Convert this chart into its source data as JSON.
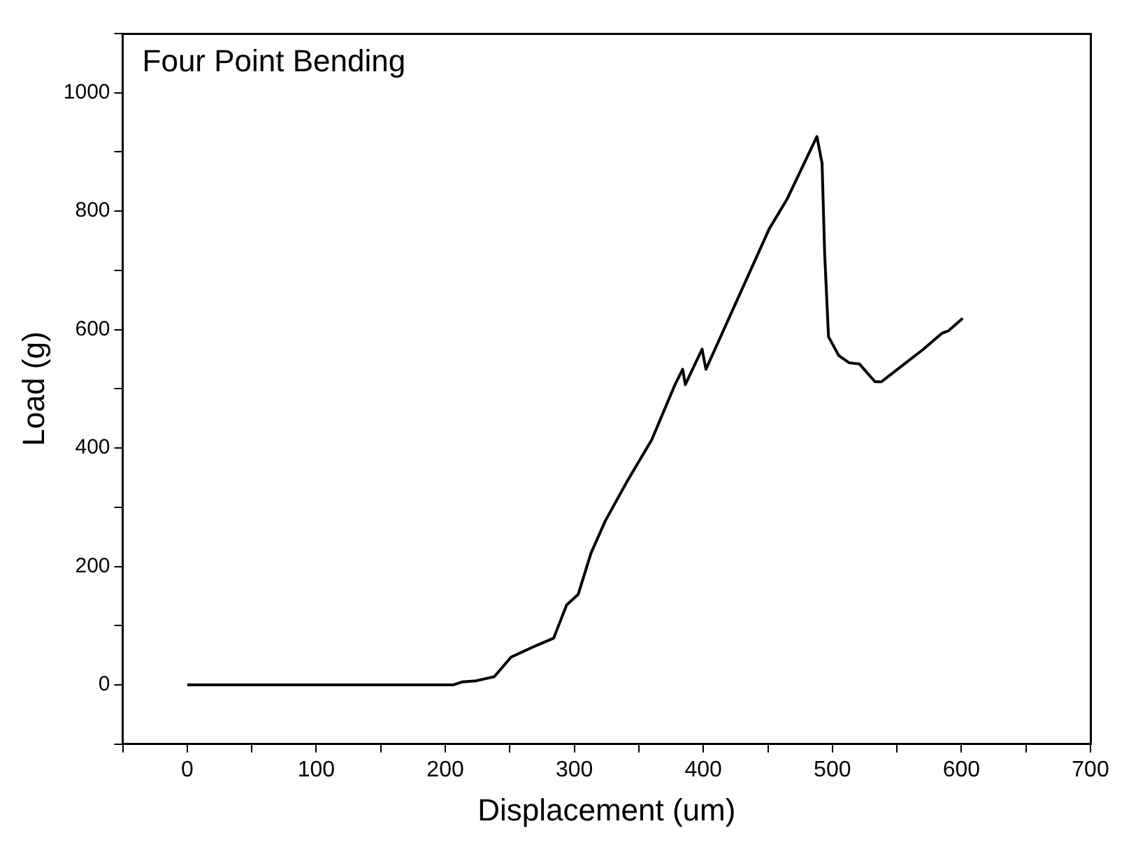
{
  "chart_data": {
    "type": "line",
    "annotations": [
      "Four Point Bending"
    ],
    "xlabel": "Displacement (um)",
    "ylabel": "Load (g)",
    "x": [
      0,
      100,
      206,
      213,
      224,
      238,
      251,
      260,
      271,
      284,
      294,
      303,
      313,
      324,
      341,
      360,
      378,
      384,
      386,
      399,
      402,
      451,
      465,
      488,
      492,
      494,
      497,
      505,
      513,
      521,
      533,
      538,
      551,
      570,
      585,
      590,
      601
    ],
    "values": [
      0,
      0,
      0,
      5,
      7,
      14,
      47,
      56,
      67,
      79,
      135,
      153,
      223,
      277,
      344,
      414,
      507,
      533,
      507,
      567,
      533,
      770,
      821,
      926,
      881,
      728,
      588,
      556,
      544,
      542,
      512,
      512,
      534,
      566,
      594,
      598,
      619
    ],
    "color": "#000000",
    "xlim": [
      -50,
      700
    ],
    "ylim": [
      -100,
      1100
    ],
    "xticks": [
      {
        "value": -50,
        "label": null
      },
      0,
      {
        "value": 50,
        "label": null
      },
      100,
      {
        "value": 150,
        "label": null
      },
      200,
      {
        "value": 250,
        "label": null
      },
      300,
      {
        "value": 350,
        "label": null
      },
      400,
      {
        "value": 450,
        "label": null
      },
      500,
      {
        "value": 550,
        "label": null
      },
      600,
      {
        "value": 650,
        "label": null
      },
      700
    ],
    "yticks": [
      {
        "value": -100,
        "label": null
      },
      0,
      {
        "value": 100,
        "label": null
      },
      200,
      {
        "value": 300,
        "label": null
      },
      400,
      {
        "value": 500,
        "label": null
      },
      600,
      {
        "value": 700,
        "label": null
      },
      800,
      {
        "value": 900,
        "label": null
      },
      1000,
      {
        "value": 1100,
        "label": null
      }
    ],
    "grid": false,
    "legend": false,
    "marker": "none",
    "line_style": "solid"
  }
}
